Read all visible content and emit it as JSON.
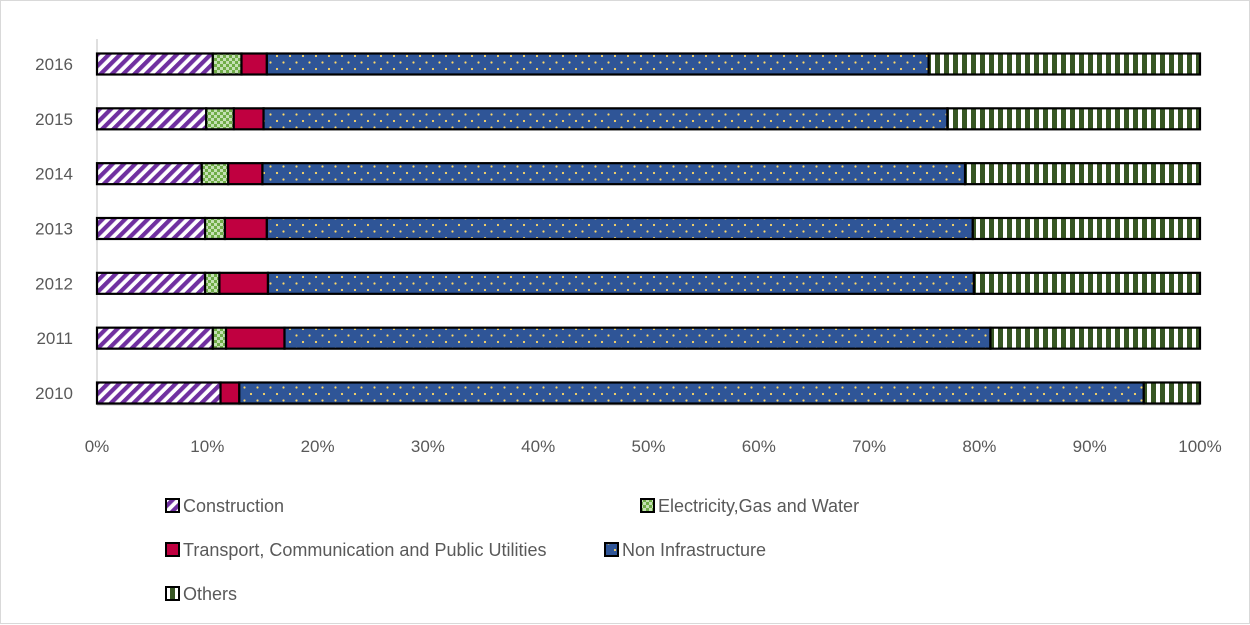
{
  "chart_data": {
    "type": "bar",
    "orientation": "horizontal",
    "stacked": "percent",
    "categories": [
      "2010",
      "2011",
      "2012",
      "2013",
      "2014",
      "2015",
      "2016"
    ],
    "series": [
      {
        "name": "Construction",
        "values": [
          11.2,
          10.5,
          9.8,
          9.8,
          9.5,
          9.9,
          10.5
        ],
        "color": "#7030a0",
        "pattern": "diagonal-stripes"
      },
      {
        "name": "Electricity,Gas and Water",
        "values": [
          0,
          1.2,
          1.3,
          1.8,
          2.4,
          2.5,
          2.6
        ],
        "color": "#a9d18e",
        "pattern": "checker"
      },
      {
        "name": "Transport, Communication and Public Utilities",
        "values": [
          1.7,
          5.3,
          4.4,
          3.8,
          3.1,
          2.7,
          2.3
        ],
        "color": "#c00040",
        "pattern": "solid"
      },
      {
        "name": "Non Infrastructure",
        "values": [
          82.0,
          64.0,
          64.0,
          64.0,
          63.7,
          62.0,
          60.0
        ],
        "color": "#2f5597",
        "pattern": "dotted"
      },
      {
        "name": "Others",
        "values": [
          5.1,
          19.0,
          20.5,
          20.6,
          21.3,
          22.9,
          24.6
        ],
        "color": "#375623",
        "pattern": "vertical-stripes"
      }
    ],
    "x_ticks": [
      "0%",
      "10%",
      "20%",
      "30%",
      "40%",
      "50%",
      "60%",
      "70%",
      "80%",
      "90%",
      "100%"
    ],
    "xlim": [
      0,
      100
    ],
    "grid": false,
    "legend_position": "bottom",
    "title": "",
    "xlabel": "",
    "ylabel": ""
  }
}
